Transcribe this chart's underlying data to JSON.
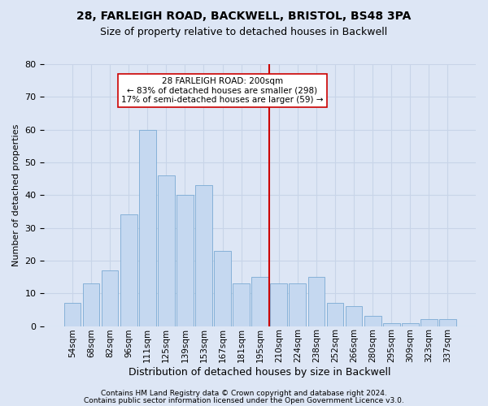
{
  "title1": "28, FARLEIGH ROAD, BACKWELL, BRISTOL, BS48 3PA",
  "title2": "Size of property relative to detached houses in Backwell",
  "xlabel": "Distribution of detached houses by size in Backwell",
  "ylabel": "Number of detached properties",
  "footer1": "Contains HM Land Registry data © Crown copyright and database right 2024.",
  "footer2": "Contains public sector information licensed under the Open Government Licence v3.0.",
  "bar_labels": [
    "54sqm",
    "68sqm",
    "82sqm",
    "96sqm",
    "111sqm",
    "125sqm",
    "139sqm",
    "153sqm",
    "167sqm",
    "181sqm",
    "195sqm",
    "210sqm",
    "224sqm",
    "238sqm",
    "252sqm",
    "266sqm",
    "280sqm",
    "295sqm",
    "309sqm",
    "323sqm",
    "337sqm"
  ],
  "bar_values": [
    7,
    13,
    17,
    34,
    60,
    46,
    40,
    43,
    23,
    13,
    15,
    13,
    13,
    15,
    7,
    6,
    3,
    1,
    1,
    2,
    2
  ],
  "bar_color": "#c5d8f0",
  "bar_edge_color": "#7aaad4",
  "grid_color": "#c8d4e8",
  "background_color": "#dde6f5",
  "vline_x": 10.5,
  "vline_color": "#cc0000",
  "annotation_title": "28 FARLEIGH ROAD: 200sqm",
  "annotation_line1": "← 83% of detached houses are smaller (298)",
  "annotation_line2": "17% of semi-detached houses are larger (59) →",
  "annotation_box_facecolor": "#ffffff",
  "annotation_box_edgecolor": "#cc0000",
  "ylim": [
    0,
    80
  ],
  "yticks": [
    0,
    10,
    20,
    30,
    40,
    50,
    60,
    70,
    80
  ],
  "title1_fontsize": 10,
  "title2_fontsize": 9,
  "xlabel_fontsize": 9,
  "ylabel_fontsize": 8,
  "tick_fontsize": 8,
  "xtick_fontsize": 7.5,
  "footer_fontsize": 6.5
}
